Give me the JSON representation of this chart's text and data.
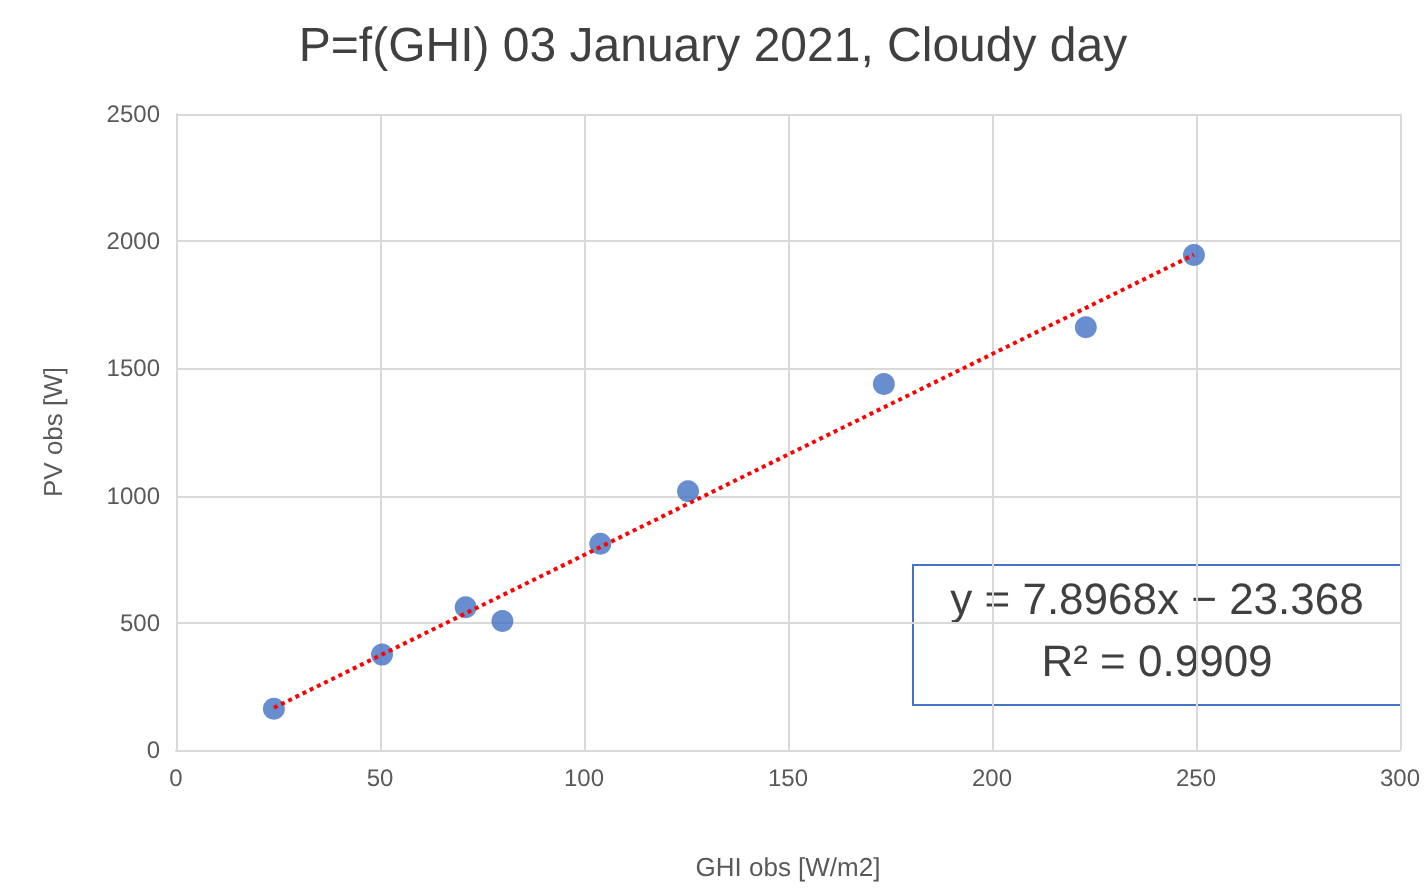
{
  "chart_data": {
    "type": "scatter",
    "title": "P=f(GHI) 03 January 2021, Cloudy day",
    "xlabel": "GHI obs [W/m2]",
    "ylabel": "PV obs [W]",
    "series": [
      {
        "color": "#4472c4",
        "x": [
          24,
          50.5,
          71,
          80,
          104,
          125.5,
          173.5,
          223,
          249.5
        ],
        "values": [
          162,
          375,
          561,
          507,
          811,
          1017,
          1439,
          1662,
          1946
        ],
        "marker": "circle"
      },
      {
        "type": "line",
        "color": "#ff0000",
        "x": [
          24,
          249.5
        ],
        "values": [
          166,
          1947
        ],
        "marker": "none",
        "line_style": "dotted"
      }
    ],
    "annotations": [
      "y = 7.8968x − 23.368",
      "R² = 0.9909"
    ],
    "xlim": [
      0,
      300
    ],
    "xticks": [
      0,
      50,
      100,
      150,
      200,
      250,
      300
    ],
    "ylim": [
      0,
      2500
    ],
    "yticks": [
      0,
      500,
      1000,
      1500,
      2000,
      2500
    ],
    "grid": true
  }
}
